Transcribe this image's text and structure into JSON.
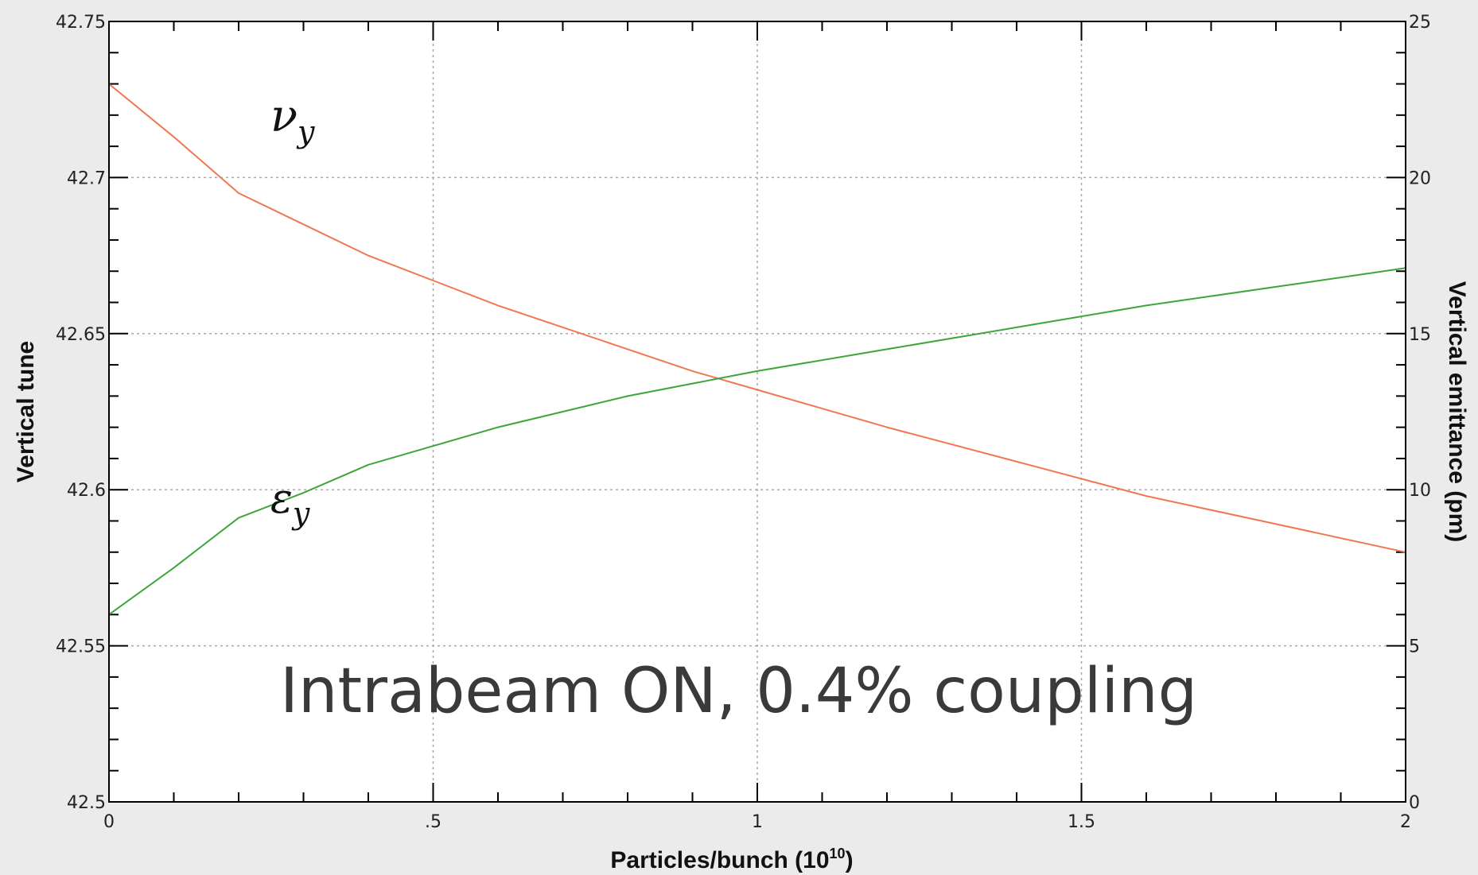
{
  "chart_data": {
    "type": "line",
    "xlabel_main": "Particles/bunch (10",
    "xlabel_sup": "10",
    "xlabel_end": ")",
    "ylabel_left": "Vertical tune",
    "ylabel_right": "Vertical emittance (pm)",
    "annotation": "Intrabeam ON, 0.4% coupling",
    "xlim": [
      0,
      2
    ],
    "ylim_left": [
      42.5,
      42.75
    ],
    "ylim_right": [
      0,
      25
    ],
    "grid": true,
    "x_ticks": [
      "0",
      ".5",
      "1",
      "1.5",
      "2"
    ],
    "y_left_ticks": [
      "42.5",
      "42.55",
      "42.6",
      "42.65",
      "42.7",
      "42.75"
    ],
    "y_right_ticks": [
      "0",
      "5",
      "10",
      "15",
      "20",
      "25"
    ],
    "series": [
      {
        "label_base": "ν",
        "label_sub": "y",
        "axis": "left",
        "color": "#f07850",
        "x": [
          0,
          0.1,
          0.2,
          0.3,
          0.4,
          0.5,
          0.6,
          0.7,
          0.8,
          0.9,
          1.0,
          1.2,
          1.4,
          1.6,
          1.8,
          2.0
        ],
        "y": [
          42.73,
          42.713,
          42.695,
          42.685,
          42.675,
          42.667,
          42.659,
          42.652,
          42.645,
          42.638,
          42.632,
          42.62,
          42.609,
          42.598,
          42.589,
          42.58
        ]
      },
      {
        "label_base": "ε",
        "label_sub": "y",
        "axis": "right",
        "color": "#3ca63c",
        "x": [
          0,
          0.1,
          0.2,
          0.3,
          0.4,
          0.5,
          0.6,
          0.7,
          0.8,
          0.9,
          1.0,
          1.2,
          1.4,
          1.6,
          1.8,
          2.0
        ],
        "y": [
          6.0,
          7.5,
          9.1,
          9.9,
          10.8,
          11.4,
          12.0,
          12.5,
          13.0,
          13.4,
          13.8,
          14.5,
          15.2,
          15.9,
          16.5,
          17.1
        ]
      }
    ]
  }
}
